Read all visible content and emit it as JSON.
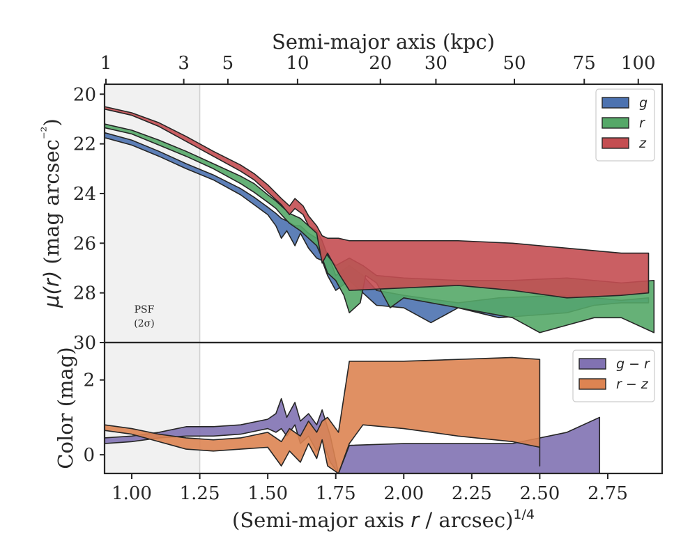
{
  "chart_data": [
    {
      "type": "area",
      "panel": "surface-brightness",
      "ylabel": "μ(r) (mag arcsec⁻²)",
      "xlabel_top": "Semi-major axis (kpc)",
      "ylim": [
        30,
        19.6
      ],
      "xlim": [
        0.9,
        2.95
      ],
      "y_inverted": true,
      "y_ticks": [
        "20",
        "22",
        "24",
        "26",
        "28",
        "30"
      ],
      "x_ticks_top": [
        "1",
        "3",
        "5",
        "10",
        "20",
        "30",
        "50",
        "75",
        "100"
      ],
      "x_ticks_top_kpc": [
        1,
        3,
        5,
        10,
        20,
        30,
        50,
        75,
        100
      ],
      "kpc_per_arcsec": 1.49,
      "psf_region": {
        "x_max": 1.25,
        "label_line1": "PSF",
        "label_line2": "(2σ)"
      },
      "legend_position": "top-right",
      "series": [
        {
          "name": "g",
          "color": "#4c72b0",
          "upper": [
            [
              0.9,
              21.55
            ],
            [
              1.0,
              21.85
            ],
            [
              1.1,
              22.3
            ],
            [
              1.2,
              22.8
            ],
            [
              1.3,
              23.25
            ],
            [
              1.4,
              23.8
            ],
            [
              1.45,
              24.15
            ],
            [
              1.5,
              24.55
            ],
            [
              1.53,
              24.8
            ],
            [
              1.55,
              25.0
            ],
            [
              1.57,
              25.1
            ],
            [
              1.6,
              25.3
            ],
            [
              1.62,
              25.3
            ],
            [
              1.65,
              25.6
            ],
            [
              1.68,
              25.8
            ],
            [
              1.7,
              26.2
            ],
            [
              1.72,
              26.4
            ],
            [
              1.75,
              27.3
            ],
            [
              1.8,
              26.9
            ],
            [
              1.85,
              27.3
            ],
            [
              1.9,
              27.9
            ],
            [
              2.0,
              28.1
            ],
            [
              2.2,
              28.4
            ],
            [
              2.35,
              28.2
            ],
            [
              2.6,
              28.1
            ],
            [
              2.8,
              28.3
            ],
            [
              2.9,
              28.2
            ]
          ],
          "lower": [
            [
              0.9,
              21.75
            ],
            [
              1.0,
              22.05
            ],
            [
              1.1,
              22.5
            ],
            [
              1.2,
              23.0
            ],
            [
              1.3,
              23.45
            ],
            [
              1.4,
              24.05
            ],
            [
              1.45,
              24.45
            ],
            [
              1.5,
              24.85
            ],
            [
              1.53,
              25.3
            ],
            [
              1.55,
              25.8
            ],
            [
              1.57,
              25.5
            ],
            [
              1.6,
              26.1
            ],
            [
              1.62,
              25.6
            ],
            [
              1.65,
              26.2
            ],
            [
              1.68,
              26.6
            ],
            [
              1.7,
              26.7
            ],
            [
              1.72,
              27.3
            ],
            [
              1.75,
              27.9
            ],
            [
              1.8,
              27.5
            ],
            [
              1.85,
              28.0
            ],
            [
              1.9,
              28.5
            ],
            [
              2.0,
              28.6
            ],
            [
              2.1,
              29.2
            ],
            [
              2.2,
              28.6
            ],
            [
              2.35,
              29.0
            ],
            [
              2.6,
              28.8
            ],
            [
              2.7,
              28.5
            ],
            [
              2.8,
              28.4
            ],
            [
              2.9,
              28.4
            ]
          ]
        },
        {
          "name": "r",
          "color": "#55a868",
          "upper": [
            [
              0.9,
              21.2
            ],
            [
              1.0,
              21.45
            ],
            [
              1.1,
              21.85
            ],
            [
              1.2,
              22.3
            ],
            [
              1.3,
              22.8
            ],
            [
              1.4,
              23.3
            ],
            [
              1.45,
              23.6
            ],
            [
              1.5,
              24.05
            ],
            [
              1.53,
              24.3
            ],
            [
              1.55,
              24.5
            ],
            [
              1.58,
              24.8
            ],
            [
              1.62,
              25.0
            ],
            [
              1.65,
              25.3
            ],
            [
              1.68,
              25.5
            ],
            [
              1.7,
              25.9
            ],
            [
              1.72,
              26.5
            ],
            [
              1.75,
              26.9
            ],
            [
              1.8,
              26.6
            ],
            [
              1.85,
              26.9
            ],
            [
              1.9,
              27.3
            ],
            [
              2.0,
              27.4
            ],
            [
              2.2,
              27.5
            ],
            [
              2.4,
              27.5
            ],
            [
              2.6,
              27.4
            ],
            [
              2.8,
              27.6
            ],
            [
              2.92,
              27.5
            ]
          ],
          "lower": [
            [
              0.9,
              21.35
            ],
            [
              1.0,
              21.6
            ],
            [
              1.1,
              22.05
            ],
            [
              1.2,
              22.5
            ],
            [
              1.3,
              23.0
            ],
            [
              1.4,
              23.6
            ],
            [
              1.45,
              23.95
            ],
            [
              1.5,
              24.35
            ],
            [
              1.53,
              24.6
            ],
            [
              1.55,
              24.85
            ],
            [
              1.58,
              25.2
            ],
            [
              1.62,
              25.5
            ],
            [
              1.65,
              25.8
            ],
            [
              1.68,
              26.1
            ],
            [
              1.7,
              26.6
            ],
            [
              1.72,
              27.2
            ],
            [
              1.75,
              27.5
            ],
            [
              1.78,
              28.1
            ],
            [
              1.8,
              28.8
            ],
            [
              1.84,
              28.4
            ],
            [
              1.86,
              27.3
            ],
            [
              1.9,
              27.6
            ],
            [
              1.95,
              28.6
            ],
            [
              2.0,
              28.2
            ],
            [
              2.2,
              28.6
            ],
            [
              2.4,
              29.0
            ],
            [
              2.5,
              29.6
            ],
            [
              2.6,
              29.3
            ],
            [
              2.7,
              29.0
            ],
            [
              2.8,
              29.0
            ],
            [
              2.92,
              29.6
            ]
          ]
        },
        {
          "name": "z",
          "color": "#c44e52",
          "upper": [
            [
              0.9,
              20.5
            ],
            [
              1.0,
              20.75
            ],
            [
              1.1,
              21.15
            ],
            [
              1.2,
              21.7
            ],
            [
              1.3,
              22.3
            ],
            [
              1.4,
              22.85
            ],
            [
              1.45,
              23.2
            ],
            [
              1.5,
              23.65
            ],
            [
              1.55,
              24.2
            ],
            [
              1.58,
              24.5
            ],
            [
              1.6,
              24.2
            ],
            [
              1.63,
              24.5
            ],
            [
              1.65,
              24.9
            ],
            [
              1.68,
              25.3
            ],
            [
              1.7,
              25.7
            ],
            [
              1.72,
              25.8
            ],
            [
              1.76,
              25.8
            ],
            [
              1.8,
              25.9
            ],
            [
              2.0,
              25.9
            ],
            [
              2.2,
              25.9
            ],
            [
              2.4,
              26.0
            ],
            [
              2.6,
              26.2
            ],
            [
              2.8,
              26.4
            ],
            [
              2.9,
              26.4
            ]
          ],
          "lower": [
            [
              0.9,
              20.6
            ],
            [
              1.0,
              20.85
            ],
            [
              1.1,
              21.3
            ],
            [
              1.2,
              21.9
            ],
            [
              1.3,
              22.5
            ],
            [
              1.4,
              23.1
            ],
            [
              1.45,
              23.45
            ],
            [
              1.5,
              23.95
            ],
            [
              1.55,
              24.45
            ],
            [
              1.58,
              24.85
            ],
            [
              1.6,
              24.6
            ],
            [
              1.63,
              24.85
            ],
            [
              1.65,
              25.3
            ],
            [
              1.68,
              25.6
            ],
            [
              1.7,
              26.8
            ],
            [
              1.72,
              26.4
            ],
            [
              1.76,
              27.2
            ],
            [
              1.8,
              27.9
            ],
            [
              2.0,
              27.8
            ],
            [
              2.2,
              27.7
            ],
            [
              2.4,
              27.9
            ],
            [
              2.6,
              28.2
            ],
            [
              2.8,
              28.1
            ],
            [
              2.9,
              28.0
            ]
          ]
        }
      ]
    },
    {
      "type": "area",
      "panel": "color",
      "xlabel": "(Semi-major axis r / arcsec)^1/4",
      "xlabel_base": "(Semi-major axis ",
      "xlabel_var": "r",
      "xlabel_rest": " / arcsec)",
      "xlabel_sup": "1/4",
      "ylabel": "Color (mag)",
      "xlim": [
        0.9,
        2.95
      ],
      "ylim": [
        -0.5,
        3.0
      ],
      "x_ticks": [
        "1.00",
        "1.25",
        "1.50",
        "1.75",
        "2.00",
        "2.25",
        "2.50",
        "2.75"
      ],
      "x_tick_values": [
        1.0,
        1.25,
        1.5,
        1.75,
        2.0,
        2.25,
        2.5,
        2.75
      ],
      "y_ticks": [
        "0",
        "2"
      ],
      "y_tick_values": [
        0,
        2
      ],
      "legend_position": "top-right",
      "series": [
        {
          "name": "g − r",
          "color": "#8172b2",
          "upper": [
            [
              0.9,
              0.45
            ],
            [
              1.0,
              0.5
            ],
            [
              1.1,
              0.6
            ],
            [
              1.2,
              0.75
            ],
            [
              1.3,
              0.75
            ],
            [
              1.4,
              0.8
            ],
            [
              1.5,
              0.95
            ],
            [
              1.53,
              1.1
            ],
            [
              1.55,
              1.5
            ],
            [
              1.57,
              1.0
            ],
            [
              1.6,
              1.4
            ],
            [
              1.62,
              0.9
            ],
            [
              1.65,
              1.1
            ],
            [
              1.68,
              0.8
            ],
            [
              1.7,
              1.2
            ],
            [
              1.73,
              0.5
            ],
            [
              1.76,
              -0.5
            ],
            [
              1.8,
              0.25
            ],
            [
              2.0,
              0.3
            ],
            [
              2.2,
              0.3
            ],
            [
              2.4,
              0.3
            ],
            [
              2.6,
              0.6
            ],
            [
              2.72,
              1.0
            ]
          ],
          "lower": [
            [
              0.9,
              0.3
            ],
            [
              1.0,
              0.35
            ],
            [
              1.1,
              0.45
            ],
            [
              1.2,
              0.5
            ],
            [
              1.3,
              0.5
            ],
            [
              1.4,
              0.55
            ],
            [
              1.5,
              0.7
            ],
            [
              1.53,
              0.6
            ],
            [
              1.55,
              0.7
            ],
            [
              1.57,
              0.5
            ],
            [
              1.6,
              0.8
            ],
            [
              1.62,
              0.3
            ],
            [
              1.65,
              0.5
            ],
            [
              1.68,
              0.1
            ],
            [
              1.7,
              0.4
            ],
            [
              1.73,
              -0.2
            ],
            [
              1.76,
              -0.5
            ],
            [
              1.8,
              -0.5
            ],
            [
              2.0,
              -0.5
            ],
            [
              2.2,
              -0.5
            ],
            [
              2.4,
              -0.5
            ],
            [
              2.6,
              -0.5
            ],
            [
              2.72,
              -0.5
            ]
          ]
        },
        {
          "name": "r − z",
          "color": "#dd8452",
          "upper": [
            [
              0.9,
              0.8
            ],
            [
              1.0,
              0.7
            ],
            [
              1.1,
              0.55
            ],
            [
              1.2,
              0.45
            ],
            [
              1.3,
              0.4
            ],
            [
              1.4,
              0.45
            ],
            [
              1.5,
              0.6
            ],
            [
              1.55,
              0.35
            ],
            [
              1.58,
              0.7
            ],
            [
              1.62,
              0.5
            ],
            [
              1.65,
              0.9
            ],
            [
              1.68,
              0.6
            ],
            [
              1.7,
              0.9
            ],
            [
              1.72,
              1.0
            ],
            [
              1.76,
              0.6
            ],
            [
              1.8,
              2.5
            ],
            [
              2.0,
              2.5
            ],
            [
              2.2,
              2.55
            ],
            [
              2.4,
              2.6
            ],
            [
              2.5,
              2.55
            ]
          ],
          "lower": [
            [
              0.9,
              0.65
            ],
            [
              1.0,
              0.55
            ],
            [
              1.1,
              0.35
            ],
            [
              1.2,
              0.15
            ],
            [
              1.3,
              0.1
            ],
            [
              1.4,
              0.15
            ],
            [
              1.5,
              0.2
            ],
            [
              1.55,
              -0.3
            ],
            [
              1.58,
              0.1
            ],
            [
              1.62,
              -0.2
            ],
            [
              1.65,
              0.3
            ],
            [
              1.68,
              -0.1
            ],
            [
              1.7,
              0.4
            ],
            [
              1.72,
              -0.3
            ],
            [
              1.76,
              -0.5
            ],
            [
              1.8,
              0.3
            ],
            [
              1.85,
              0.8
            ],
            [
              2.0,
              0.7
            ],
            [
              2.2,
              0.5
            ],
            [
              2.4,
              0.35
            ],
            [
              2.5,
              0.2
            ],
            [
              2.5,
              -0.3
            ]
          ]
        }
      ]
    }
  ]
}
